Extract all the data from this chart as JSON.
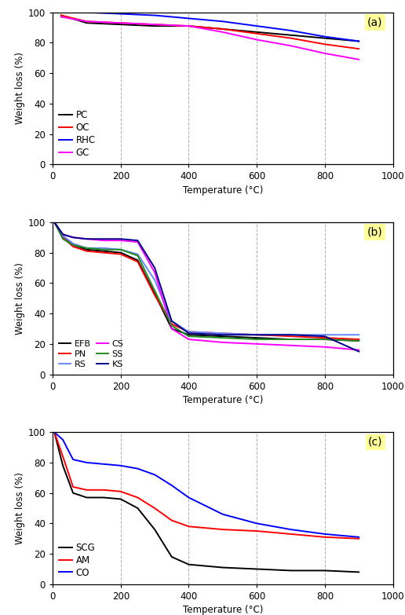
{
  "panel_a": {
    "label": "(a)",
    "series": {
      "PC": {
        "color": "black",
        "data": [
          [
            25,
            98
          ],
          [
            100,
            93
          ],
          [
            200,
            92
          ],
          [
            300,
            91
          ],
          [
            400,
            91
          ],
          [
            500,
            89
          ],
          [
            600,
            87
          ],
          [
            700,
            85
          ],
          [
            800,
            83
          ],
          [
            900,
            81
          ]
        ]
      },
      "OC": {
        "color": "red",
        "data": [
          [
            25,
            98
          ],
          [
            100,
            94
          ],
          [
            200,
            93
          ],
          [
            300,
            92
          ],
          [
            400,
            91
          ],
          [
            500,
            89
          ],
          [
            600,
            86
          ],
          [
            700,
            83
          ],
          [
            800,
            79
          ],
          [
            900,
            76
          ]
        ]
      },
      "RHC": {
        "color": "blue",
        "data": [
          [
            25,
            100
          ],
          [
            100,
            100
          ],
          [
            200,
            99
          ],
          [
            300,
            98
          ],
          [
            400,
            96
          ],
          [
            500,
            94
          ],
          [
            600,
            91
          ],
          [
            700,
            88
          ],
          [
            800,
            84
          ],
          [
            900,
            81
          ]
        ]
      },
      "GC": {
        "color": "magenta",
        "data": [
          [
            25,
            97
          ],
          [
            100,
            94
          ],
          [
            200,
            93
          ],
          [
            300,
            92
          ],
          [
            400,
            91
          ],
          [
            500,
            87
          ],
          [
            600,
            82
          ],
          [
            700,
            78
          ],
          [
            800,
            73
          ],
          [
            900,
            69
          ]
        ]
      }
    },
    "legend_order": [
      "PC",
      "OC",
      "RHC",
      "GC"
    ],
    "legend_ncol": 1
  },
  "panel_b": {
    "label": "(b)",
    "series": {
      "EFB": {
        "color": "black",
        "data": [
          [
            5,
            100
          ],
          [
            30,
            91
          ],
          [
            60,
            85
          ],
          [
            100,
            82
          ],
          [
            150,
            81
          ],
          [
            200,
            80
          ],
          [
            250,
            75
          ],
          [
            300,
            53
          ],
          [
            350,
            30
          ],
          [
            400,
            26
          ],
          [
            500,
            25
          ],
          [
            600,
            24
          ],
          [
            700,
            23
          ],
          [
            800,
            23
          ],
          [
            900,
            22
          ]
        ]
      },
      "PN": {
        "color": "red",
        "data": [
          [
            5,
            100
          ],
          [
            30,
            90
          ],
          [
            60,
            84
          ],
          [
            100,
            81
          ],
          [
            150,
            80
          ],
          [
            200,
            79
          ],
          [
            250,
            74
          ],
          [
            300,
            52
          ],
          [
            350,
            33
          ],
          [
            400,
            28
          ],
          [
            500,
            27
          ],
          [
            600,
            26
          ],
          [
            700,
            25
          ],
          [
            800,
            24
          ],
          [
            900,
            23
          ]
        ]
      },
      "RS": {
        "color": "#6688ff",
        "data": [
          [
            5,
            100
          ],
          [
            30,
            91
          ],
          [
            60,
            86
          ],
          [
            100,
            83
          ],
          [
            150,
            83
          ],
          [
            200,
            82
          ],
          [
            250,
            79
          ],
          [
            300,
            62
          ],
          [
            350,
            35
          ],
          [
            400,
            28
          ],
          [
            500,
            27
          ],
          [
            600,
            26
          ],
          [
            700,
            26
          ],
          [
            800,
            26
          ],
          [
            900,
            26
          ]
        ]
      },
      "CS": {
        "color": "magenta",
        "data": [
          [
            5,
            100
          ],
          [
            30,
            92
          ],
          [
            60,
            90
          ],
          [
            100,
            89
          ],
          [
            150,
            88
          ],
          [
            200,
            88
          ],
          [
            250,
            87
          ],
          [
            300,
            67
          ],
          [
            350,
            30
          ],
          [
            400,
            23
          ],
          [
            500,
            21
          ],
          [
            600,
            20
          ],
          [
            700,
            19
          ],
          [
            800,
            18
          ],
          [
            900,
            16
          ]
        ]
      },
      "SS": {
        "color": "#228B22",
        "data": [
          [
            5,
            100
          ],
          [
            30,
            89
          ],
          [
            60,
            85
          ],
          [
            100,
            83
          ],
          [
            150,
            82
          ],
          [
            200,
            82
          ],
          [
            250,
            78
          ],
          [
            300,
            55
          ],
          [
            350,
            32
          ],
          [
            400,
            25
          ],
          [
            500,
            24
          ],
          [
            600,
            23
          ],
          [
            700,
            23
          ],
          [
            800,
            23
          ],
          [
            900,
            22
          ]
        ]
      },
      "KS": {
        "color": "#00008B",
        "data": [
          [
            5,
            100
          ],
          [
            30,
            92
          ],
          [
            60,
            90
          ],
          [
            100,
            89
          ],
          [
            150,
            89
          ],
          [
            200,
            89
          ],
          [
            250,
            88
          ],
          [
            300,
            70
          ],
          [
            350,
            35
          ],
          [
            400,
            27
          ],
          [
            500,
            26
          ],
          [
            600,
            26
          ],
          [
            700,
            26
          ],
          [
            800,
            25
          ],
          [
            900,
            15
          ]
        ]
      }
    },
    "legend_order": [
      "EFB",
      "PN",
      "RS",
      "CS",
      "SS",
      "KS"
    ],
    "legend_ncol": 2
  },
  "panel_c": {
    "label": "(c)",
    "series": {
      "SCG": {
        "color": "black",
        "data": [
          [
            5,
            100
          ],
          [
            30,
            78
          ],
          [
            60,
            60
          ],
          [
            100,
            57
          ],
          [
            150,
            57
          ],
          [
            200,
            56
          ],
          [
            250,
            50
          ],
          [
            300,
            36
          ],
          [
            350,
            18
          ],
          [
            400,
            13
          ],
          [
            500,
            11
          ],
          [
            600,
            10
          ],
          [
            700,
            9
          ],
          [
            800,
            9
          ],
          [
            900,
            8
          ]
        ]
      },
      "AM": {
        "color": "red",
        "data": [
          [
            5,
            100
          ],
          [
            30,
            84
          ],
          [
            60,
            64
          ],
          [
            100,
            62
          ],
          [
            150,
            62
          ],
          [
            200,
            61
          ],
          [
            250,
            57
          ],
          [
            300,
            50
          ],
          [
            350,
            42
          ],
          [
            400,
            38
          ],
          [
            500,
            36
          ],
          [
            600,
            35
          ],
          [
            700,
            33
          ],
          [
            800,
            31
          ],
          [
            900,
            30
          ]
        ]
      },
      "CO": {
        "color": "blue",
        "data": [
          [
            5,
            100
          ],
          [
            30,
            95
          ],
          [
            60,
            82
          ],
          [
            100,
            80
          ],
          [
            150,
            79
          ],
          [
            200,
            78
          ],
          [
            250,
            76
          ],
          [
            300,
            72
          ],
          [
            350,
            65
          ],
          [
            400,
            57
          ],
          [
            500,
            46
          ],
          [
            600,
            40
          ],
          [
            700,
            36
          ],
          [
            800,
            33
          ],
          [
            900,
            31
          ]
        ]
      }
    },
    "legend_order": [
      "SCG",
      "AM",
      "CO"
    ],
    "legend_ncol": 1
  },
  "xlim": [
    0,
    960
  ],
  "xticks": [
    0,
    200,
    400,
    600,
    800,
    1000
  ],
  "ylim": [
    0,
    100
  ],
  "yticks": [
    0,
    20,
    40,
    60,
    80,
    100
  ],
  "xlabel": "Temperature (°C)",
  "ylabel": "Weight loss (%)",
  "vlines": [
    200,
    400,
    600,
    800
  ],
  "background_color": "#ffffff",
  "label_box_color": "#ffff99"
}
